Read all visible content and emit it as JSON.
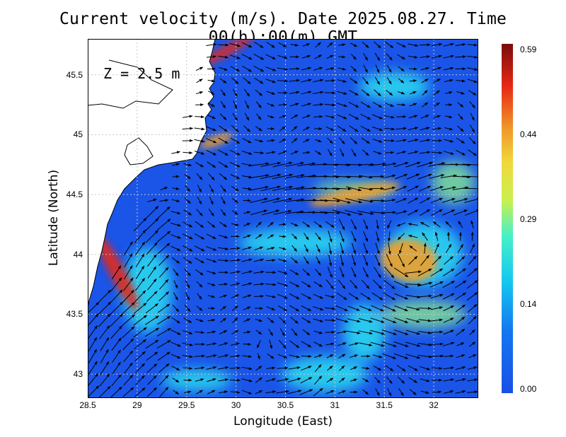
{
  "title": "Current velocity (m/s). Date 2025.08.27. Time 00(h):00(m) GMT",
  "depth_label": "Z = 2.5 m",
  "x_axis": {
    "label": "Longitude (East)",
    "ticks": [
      "28.5",
      "29",
      "29.5",
      "30",
      "30.5",
      "31",
      "31.5",
      "32"
    ],
    "range": [
      28.5,
      32.45
    ]
  },
  "y_axis": {
    "label": "Latitude (North)",
    "ticks": [
      "43",
      "43.5",
      "44",
      "44.5",
      "45",
      "45.5"
    ],
    "range": [
      42.8,
      45.8
    ]
  },
  "colorbar": {
    "ticks": [
      "0.59",
      "0.44",
      "0.29",
      "0.14",
      "0.00"
    ],
    "range": [
      0,
      0.59
    ],
    "colors": [
      "#1a4fe6",
      "#14a0f0",
      "#2ef0f0",
      "#8cf08c",
      "#f0f040",
      "#f0a028",
      "#e62814",
      "#8c1010"
    ]
  },
  "chart_data": {
    "type": "heatmap",
    "title": "Current velocity (m/s). Date 2025.08.27. Time 00(h):00(m) GMT",
    "xlabel": "Longitude (East)",
    "ylabel": "Latitude (North)",
    "xlim": [
      28.5,
      32.45
    ],
    "ylim": [
      42.8,
      45.8
    ],
    "value_range": [
      0,
      0.59
    ],
    "units": "m/s",
    "depth": "Z = 2.5 m",
    "grid": "dotted",
    "features": [
      {
        "name": "coastal jet",
        "lon": 28.8,
        "lat": 43.85,
        "speed": 0.52
      },
      {
        "name": "rim current",
        "lon": 31.2,
        "lat": 44.5,
        "speed": 0.42
      },
      {
        "name": "eddy",
        "lon": 31.75,
        "lat": 43.95,
        "speed": 0.47
      },
      {
        "name": "northern jet",
        "lon": 29.9,
        "lat": 45.7,
        "speed": 0.45
      },
      {
        "name": "shelf jet",
        "lon": 29.8,
        "lat": 44.95,
        "speed": 0.4
      }
    ]
  }
}
